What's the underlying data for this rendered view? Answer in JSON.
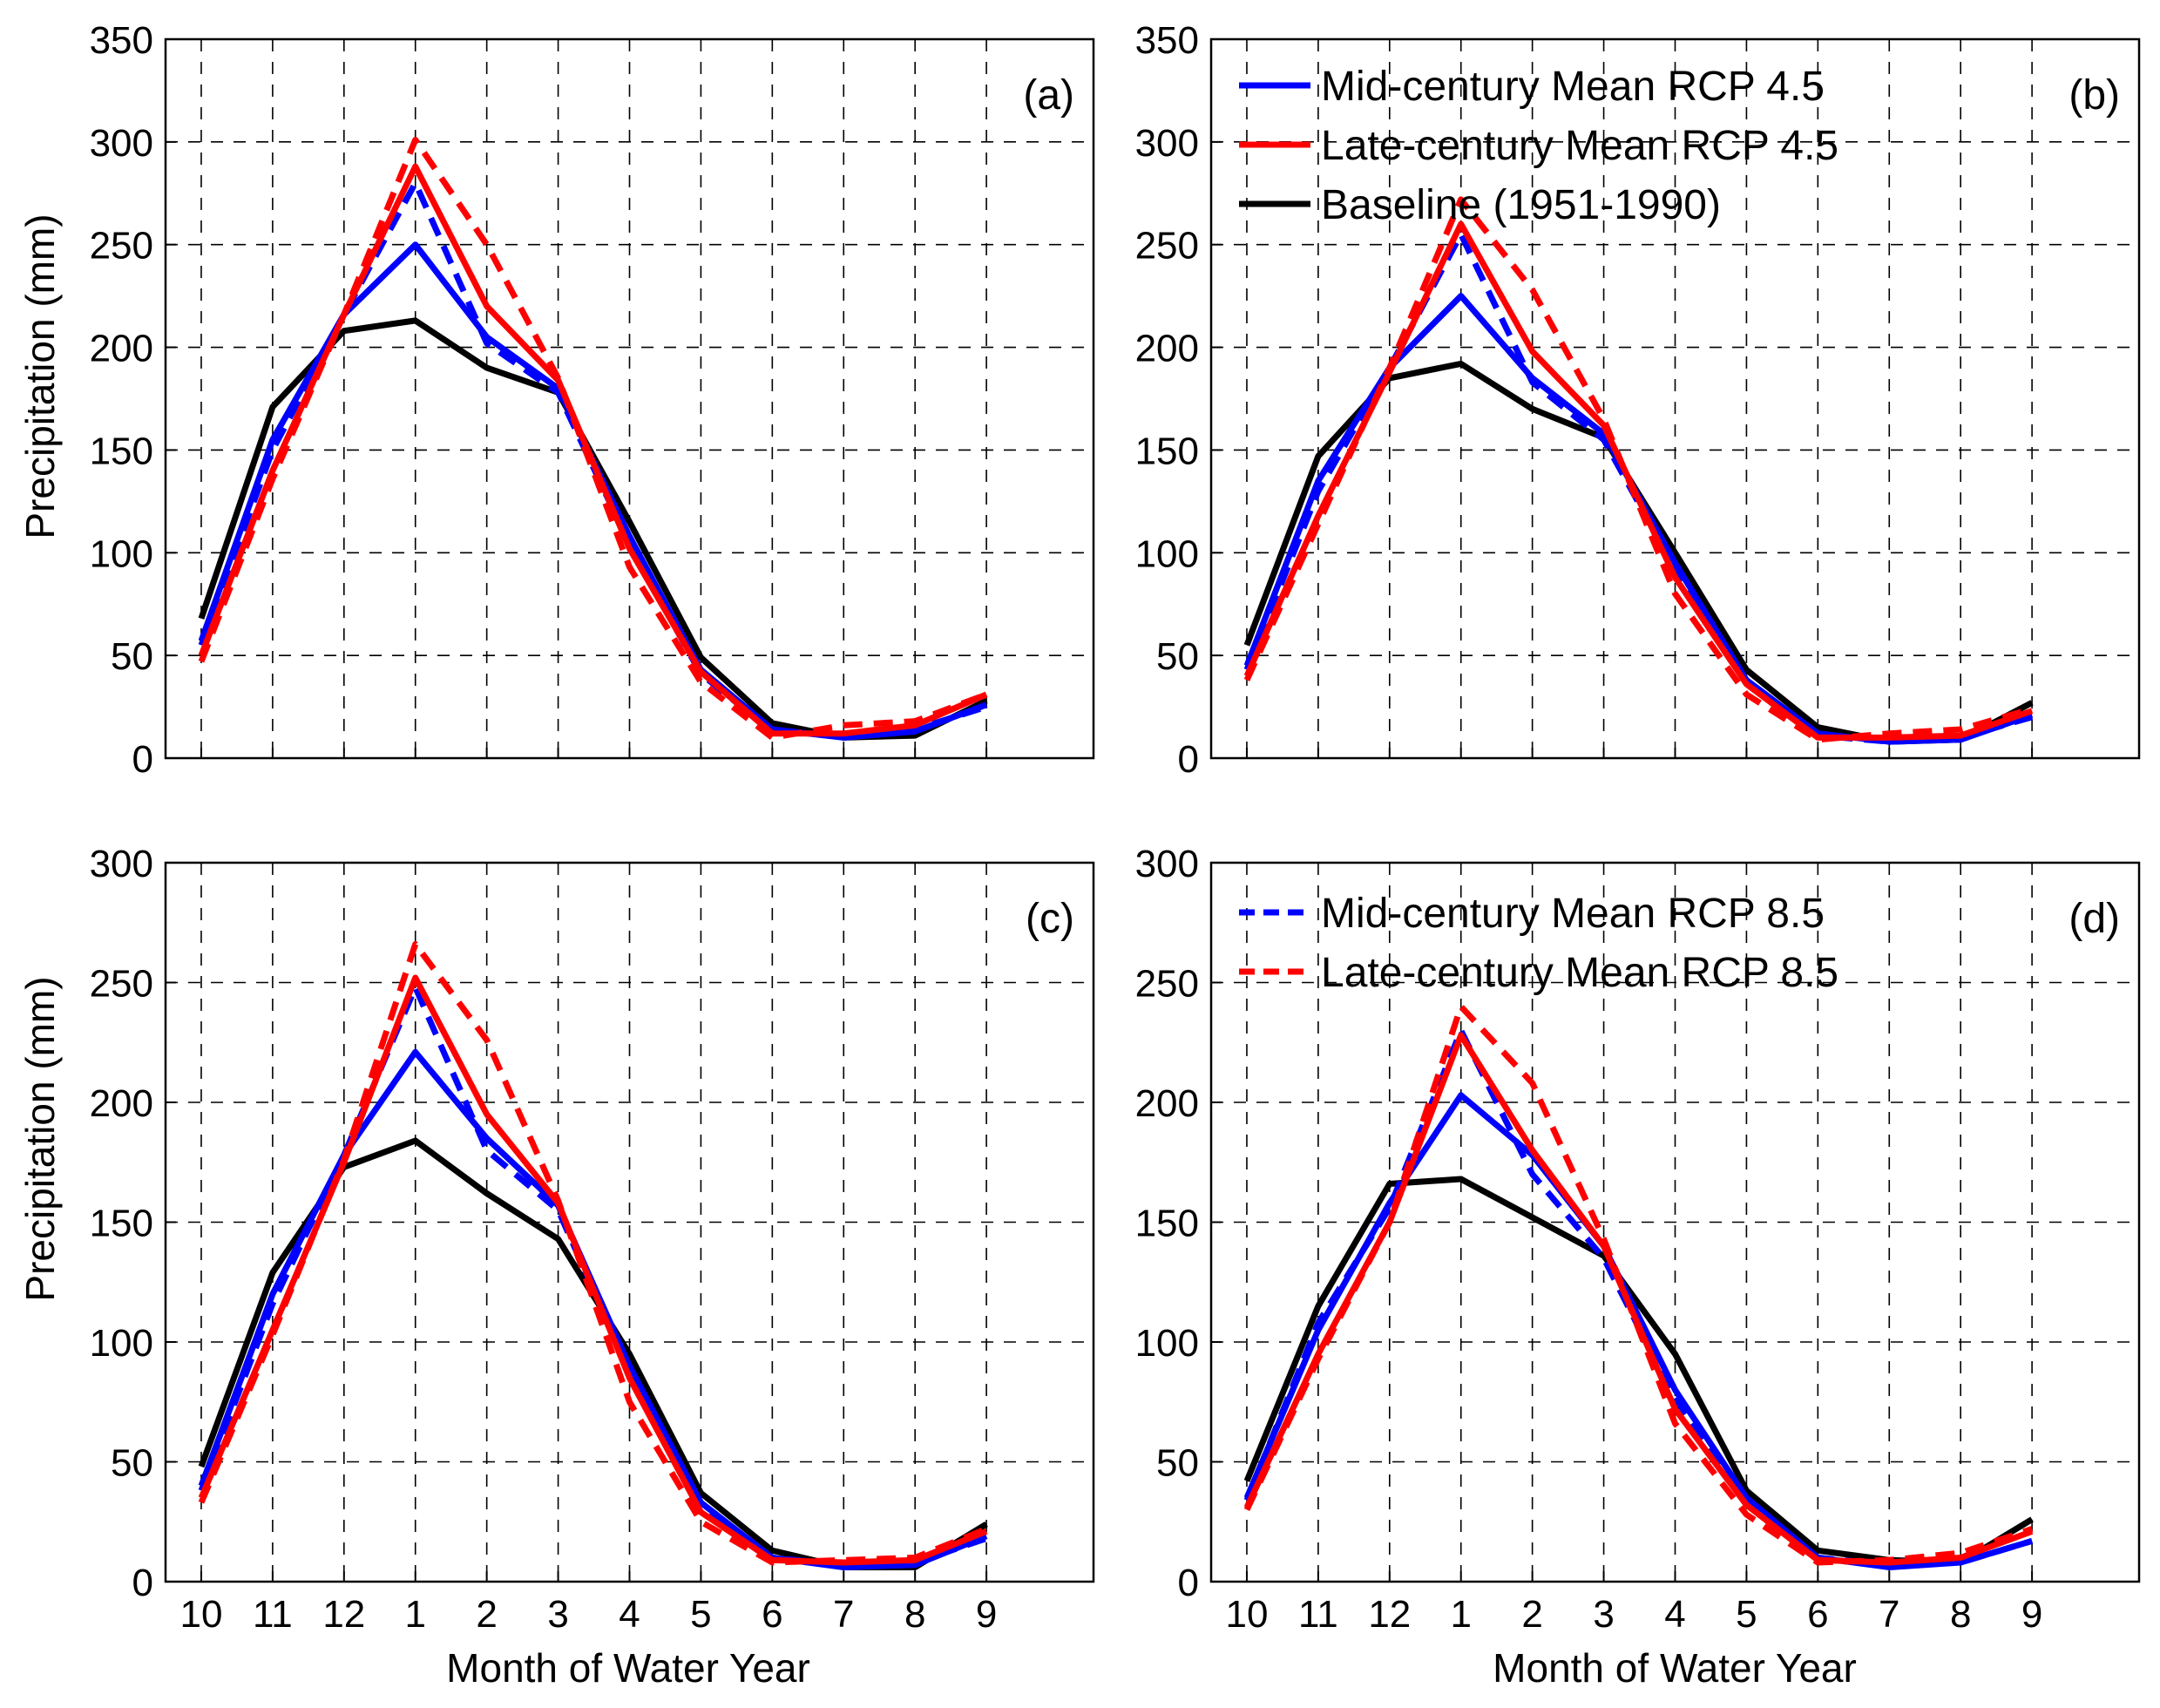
{
  "figure": {
    "x_label": "Month of Water Year",
    "y_label": "Precipitation (mm)"
  },
  "legend_top": [
    {
      "series": "mid45",
      "label": "Mid-century Mean RCP 4.5"
    },
    {
      "series": "late45",
      "label": "Late-century Mean RCP 4.5"
    },
    {
      "series": "base",
      "label": "Baseline (1951-1990)"
    }
  ],
  "legend_bottom": [
    {
      "series": "mid85",
      "label": "Mid-century Mean RCP 8.5"
    },
    {
      "series": "late85",
      "label": "Late-century Mean RCP 8.5"
    }
  ],
  "styles": {
    "mid45": {
      "color": "#0000ff",
      "dashed": false
    },
    "mid85": {
      "color": "#0000ff",
      "dashed": true
    },
    "late45": {
      "color": "#ff0000",
      "dashed": false
    },
    "late85": {
      "color": "#ff0000",
      "dashed": true
    },
    "base": {
      "color": "#000000",
      "dashed": false
    }
  },
  "chart_data": [
    {
      "type": "line",
      "panel": "(a)",
      "categories": [
        "10",
        "11",
        "12",
        "1",
        "2",
        "3",
        "4",
        "5",
        "6",
        "7",
        "8",
        "9"
      ],
      "xlabel": "",
      "ylabel": "Precipitation (mm)",
      "ylim": [
        0,
        350
      ],
      "yticks": [
        0,
        50,
        100,
        150,
        200,
        250,
        300,
        350
      ],
      "grid": true,
      "series": [
        {
          "key": "mid45",
          "name": "Mid-century Mean RCP 4.5",
          "values": [
            57,
            155,
            216,
            250,
            205,
            180,
            108,
            43,
            14,
            10,
            13,
            26
          ]
        },
        {
          "key": "mid85",
          "name": "Mid-century Mean RCP 8.5",
          "values": [
            55,
            150,
            216,
            280,
            202,
            178,
            104,
            41,
            13,
            11,
            14,
            25
          ]
        },
        {
          "key": "late45",
          "name": "Late-century Mean RCP 4.5",
          "values": [
            50,
            140,
            216,
            288,
            220,
            184,
            102,
            42,
            12,
            12,
            16,
            31
          ]
        },
        {
          "key": "late85",
          "name": "Late-century Mean RCP 8.5",
          "values": [
            47,
            136,
            216,
            301,
            250,
            185,
            93,
            37,
            10,
            16,
            18,
            31
          ]
        },
        {
          "key": "base",
          "name": "Baseline (1951-1990)",
          "values": [
            68,
            171,
            208,
            213,
            190,
            178,
            115,
            49,
            17,
            10,
            11,
            28
          ]
        }
      ]
    },
    {
      "type": "line",
      "panel": "(b)",
      "categories": [
        "10",
        "11",
        "12",
        "1",
        "2",
        "3",
        "4",
        "5",
        "6",
        "7",
        "8",
        "9"
      ],
      "xlabel": "",
      "ylabel": "",
      "ylim": [
        0,
        350
      ],
      "yticks": [
        0,
        50,
        100,
        150,
        200,
        250,
        300,
        350
      ],
      "grid": true,
      "series": [
        {
          "key": "mid45",
          "name": "Mid-century Mean RCP 4.5",
          "values": [
            45,
            135,
            190,
            225,
            185,
            158,
            95,
            38,
            12,
            8,
            9,
            21
          ]
        },
        {
          "key": "mid85",
          "name": "Mid-century Mean RCP 8.5",
          "values": [
            43,
            130,
            190,
            255,
            183,
            155,
            92,
            37,
            11,
            8,
            10,
            20
          ]
        },
        {
          "key": "late45",
          "name": "Late-century Mean RCP 4.5",
          "values": [
            40,
            118,
            188,
            260,
            198,
            162,
            88,
            36,
            10,
            10,
            11,
            23
          ]
        },
        {
          "key": "late85",
          "name": "Late-century Mean RCP 8.5",
          "values": [
            38,
            114,
            190,
            272,
            228,
            165,
            80,
            31,
            9,
            12,
            14,
            24
          ]
        },
        {
          "key": "base",
          "name": "Baseline (1951-1990)",
          "values": [
            55,
            147,
            185,
            192,
            170,
            156,
            100,
            43,
            15,
            8,
            9,
            27
          ]
        }
      ]
    },
    {
      "type": "line",
      "panel": "(c)",
      "categories": [
        "10",
        "11",
        "12",
        "1",
        "2",
        "3",
        "4",
        "5",
        "6",
        "7",
        "8",
        "9"
      ],
      "xlabel": "Month of Water Year",
      "ylabel": "Precipitation (mm)",
      "ylim": [
        0,
        300
      ],
      "yticks": [
        0,
        50,
        100,
        150,
        200,
        250,
        300
      ],
      "grid": true,
      "series": [
        {
          "key": "mid45",
          "name": "Mid-century Mean RCP 4.5",
          "values": [
            40,
            120,
            178,
            221,
            185,
            157,
            90,
            33,
            10,
            6,
            7,
            19
          ]
        },
        {
          "key": "mid85",
          "name": "Mid-century Mean RCP 8.5",
          "values": [
            38,
            116,
            178,
            248,
            180,
            155,
            88,
            31,
            10,
            7,
            8,
            18
          ]
        },
        {
          "key": "late45",
          "name": "Late-century Mean RCP 4.5",
          "values": [
            35,
            105,
            175,
            252,
            195,
            158,
            85,
            29,
            9,
            8,
            9,
            21
          ]
        },
        {
          "key": "late85",
          "name": "Late-century Mean RCP 8.5",
          "values": [
            33,
            103,
            176,
            266,
            226,
            159,
            75,
            25,
            8,
            9,
            10,
            22
          ]
        },
        {
          "key": "base",
          "name": "Baseline (1951-1990)",
          "values": [
            48,
            129,
            173,
            184,
            162,
            143,
            95,
            37,
            13,
            6,
            6,
            24
          ]
        }
      ]
    },
    {
      "type": "line",
      "panel": "(d)",
      "categories": [
        "10",
        "11",
        "12",
        "1",
        "2",
        "3",
        "4",
        "5",
        "6",
        "7",
        "8",
        "9"
      ],
      "xlabel": "Month of Water Year",
      "ylabel": "",
      "ylim": [
        0,
        300
      ],
      "yticks": [
        0,
        50,
        100,
        150,
        200,
        250,
        300
      ],
      "grid": true,
      "series": [
        {
          "key": "mid45",
          "name": "Mid-century Mean RCP 4.5",
          "values": [
            35,
            105,
            158,
            203,
            178,
            140,
            80,
            35,
            10,
            6,
            8,
            17
          ]
        },
        {
          "key": "mid85",
          "name": "Mid-century Mean RCP 8.5",
          "values": [
            34,
            108,
            156,
            230,
            170,
            135,
            76,
            33,
            10,
            7,
            8,
            17
          ]
        },
        {
          "key": "late45",
          "name": "Late-century Mean RCP 4.5",
          "values": [
            31,
            95,
            150,
            228,
            180,
            140,
            72,
            32,
            9,
            8,
            10,
            21
          ]
        },
        {
          "key": "late85",
          "name": "Late-century Mean RCP 8.5",
          "values": [
            30,
            93,
            150,
            240,
            208,
            143,
            66,
            28,
            8,
            9,
            12,
            22
          ]
        },
        {
          "key": "base",
          "name": "Baseline (1951-1990)",
          "values": [
            42,
            115,
            166,
            168,
            152,
            136,
            95,
            38,
            13,
            9,
            8,
            26
          ]
        }
      ]
    }
  ]
}
